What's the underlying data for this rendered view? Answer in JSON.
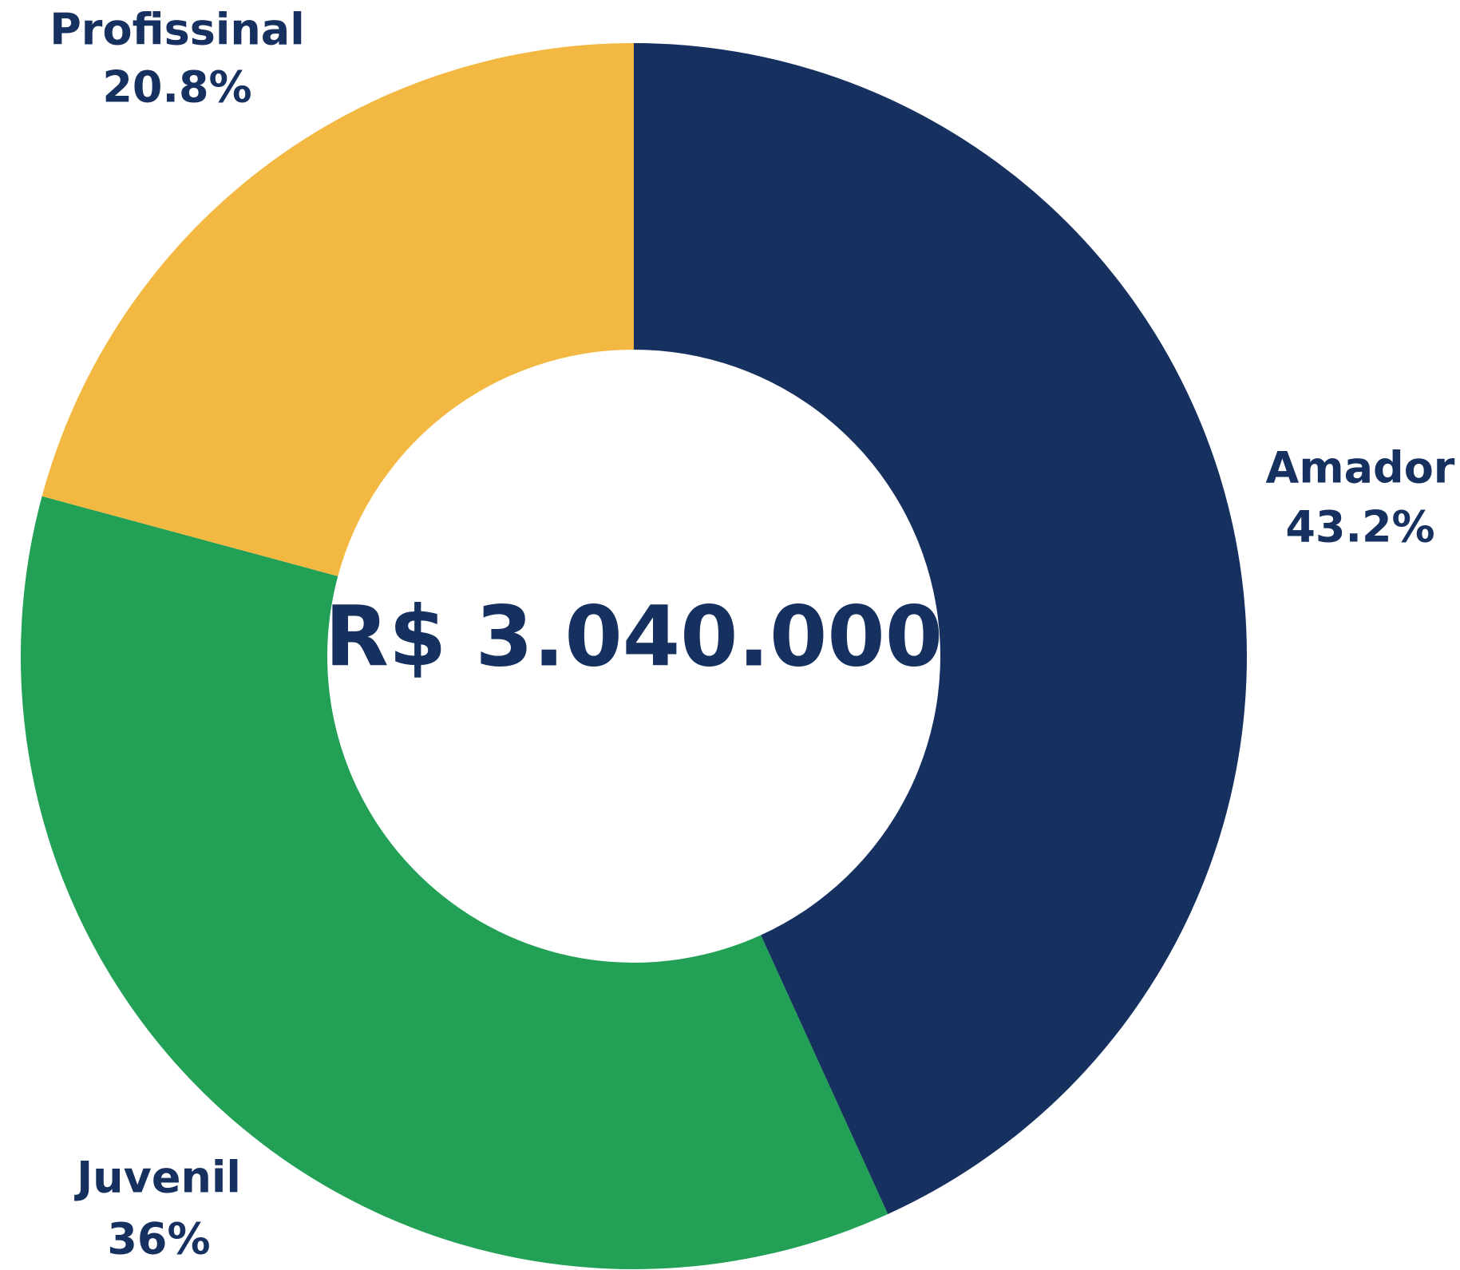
{
  "chart_data": {
    "type": "donut",
    "categories": [
      "Amador",
      "Juvenil",
      "Profissinal"
    ],
    "values": [
      43.2,
      36,
      20.8
    ],
    "value_labels": [
      "43.2%",
      "36%",
      "20.8%"
    ],
    "colors": [
      "#163060",
      "#21a056",
      "#f3b842"
    ],
    "center_label": "R$ 3.040.000"
  }
}
